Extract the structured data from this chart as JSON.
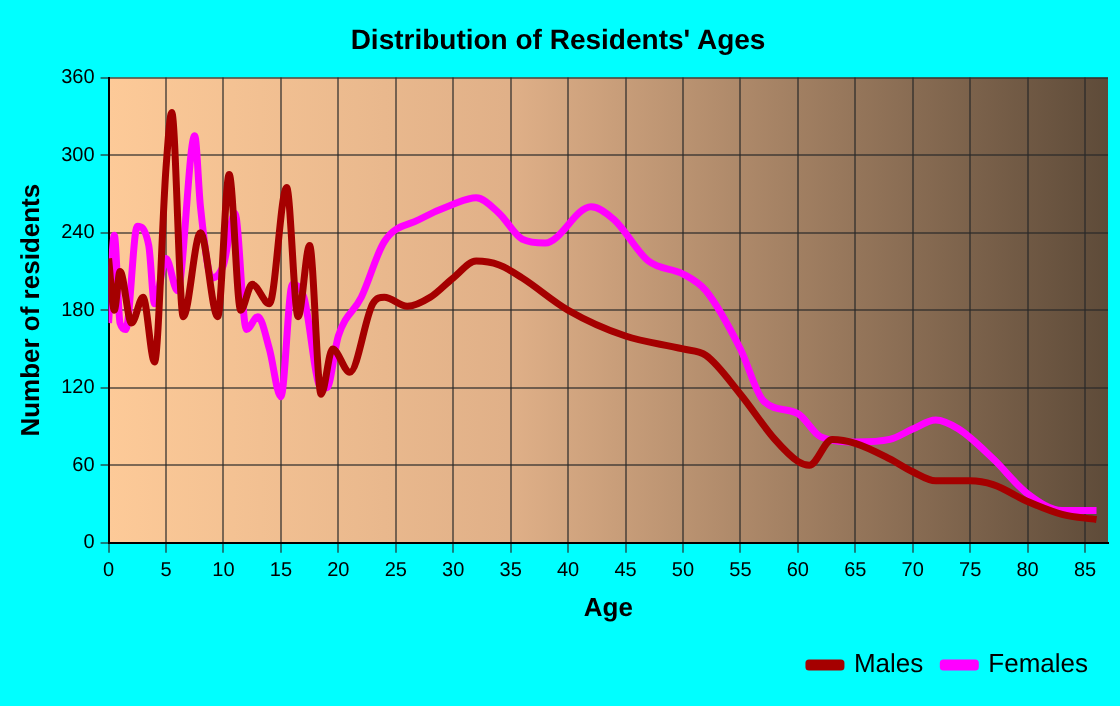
{
  "chart_data": {
    "type": "line",
    "title": "Distribution of Residents' Ages",
    "xlabel": "Age",
    "ylabel": "Number of residents",
    "xlim": [
      0,
      87
    ],
    "xticks": [
      0,
      5,
      10,
      15,
      20,
      25,
      30,
      35,
      40,
      45,
      50,
      55,
      60,
      65,
      70,
      75,
      80,
      85
    ],
    "ylim": [
      0,
      360
    ],
    "yticks": [
      0,
      60,
      120,
      180,
      240,
      300,
      360
    ],
    "grid": true,
    "legend": "bottom right",
    "marker": "none",
    "line_style": "solid",
    "series": [
      {
        "name": "Males",
        "color": "#a50000",
        "x": [
          0,
          0.5,
          1,
          2,
          3,
          4,
          5,
          5.5,
          6.5,
          8,
          9.5,
          10.5,
          11.5,
          12.5,
          14,
          15.5,
          16.5,
          17.5,
          18.5,
          19.5,
          21,
          23,
          24,
          26,
          28,
          30,
          32,
          34,
          36,
          40,
          45,
          50,
          52,
          55,
          58,
          60,
          61,
          63,
          65,
          68,
          70,
          72,
          75,
          77,
          80,
          83,
          86
        ],
        "values": [
          220,
          180,
          210,
          170,
          190,
          140,
          290,
          333,
          175,
          240,
          175,
          285,
          180,
          200,
          185,
          275,
          175,
          230,
          115,
          150,
          132,
          185,
          190,
          183,
          190,
          205,
          218,
          215,
          205,
          180,
          160,
          150,
          145,
          115,
          80,
          63,
          60,
          80,
          77,
          65,
          55,
          48,
          48,
          45,
          32,
          22,
          18
        ]
      },
      {
        "name": "Females",
        "color": "#ff00ff",
        "x": [
          0,
          0.5,
          1,
          1.5,
          2.5,
          3.5,
          4,
          5,
          6,
          7.5,
          8,
          9,
          10,
          11,
          12,
          13,
          14,
          15,
          16,
          17,
          18.5,
          19,
          20,
          22,
          24,
          27,
          30,
          32,
          34,
          36,
          38,
          42,
          44,
          47,
          50,
          52,
          55,
          57,
          60,
          62,
          65,
          68,
          70,
          72,
          74,
          77,
          80,
          83,
          86
        ],
        "values": [
          170,
          238,
          170,
          165,
          245,
          230,
          185,
          220,
          195,
          315,
          260,
          205,
          215,
          255,
          165,
          175,
          150,
          113,
          200,
          190,
          120,
          120,
          160,
          190,
          233,
          250,
          262,
          267,
          255,
          235,
          232,
          260,
          250,
          218,
          208,
          195,
          150,
          110,
          100,
          82,
          78,
          80,
          88,
          95,
          88,
          65,
          38,
          25,
          25
        ]
      }
    ]
  }
}
